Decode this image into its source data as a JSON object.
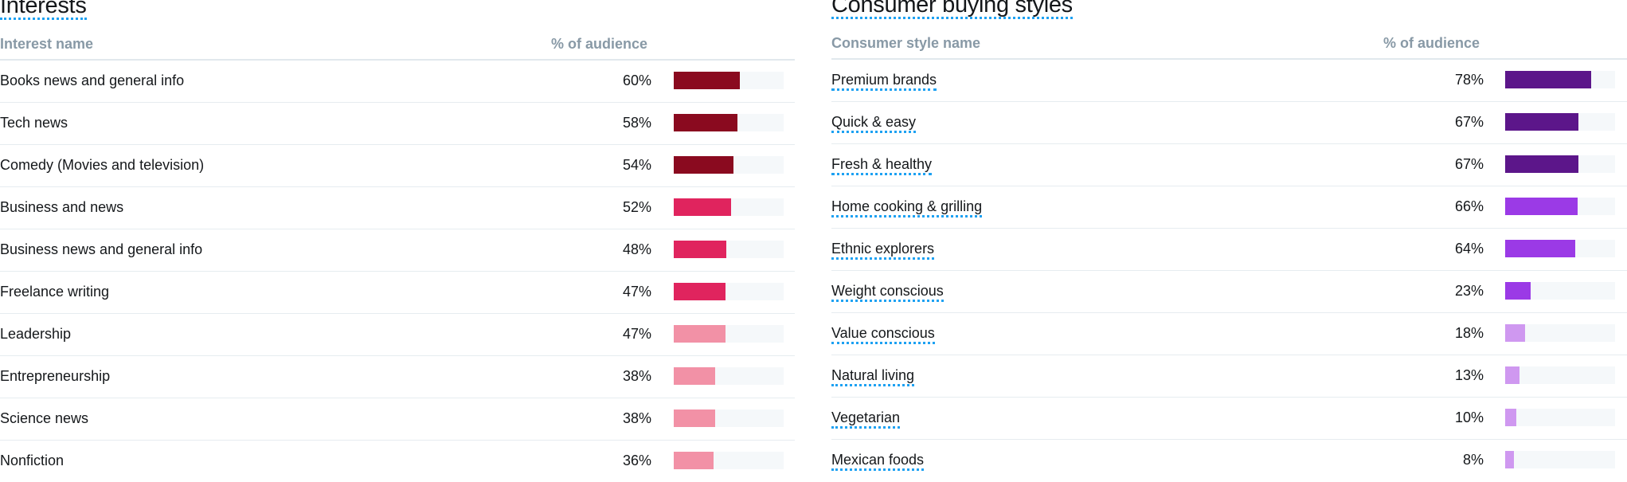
{
  "interests": {
    "title": "Interests",
    "header_name": "Interest name",
    "header_pct": "% of audience",
    "rows": [
      {
        "name": "Books news and general info",
        "pct_label": "60%",
        "value": 60,
        "color": "#8a0a1f"
      },
      {
        "name": "Tech news",
        "pct_label": "58%",
        "value": 58,
        "color": "#8a0a1f"
      },
      {
        "name": "Comedy (Movies and television)",
        "pct_label": "54%",
        "value": 54,
        "color": "#8a0a1f"
      },
      {
        "name": "Business and news",
        "pct_label": "52%",
        "value": 52,
        "color": "#e0245e"
      },
      {
        "name": "Business news and general info",
        "pct_label": "48%",
        "value": 48,
        "color": "#e0245e"
      },
      {
        "name": "Freelance writing",
        "pct_label": "47%",
        "value": 47,
        "color": "#e0245e"
      },
      {
        "name": "Leadership",
        "pct_label": "47%",
        "value": 47,
        "color": "#f291a6"
      },
      {
        "name": "Entrepreneurship",
        "pct_label": "38%",
        "value": 38,
        "color": "#f291a6"
      },
      {
        "name": "Science news",
        "pct_label": "38%",
        "value": 38,
        "color": "#f291a6"
      },
      {
        "name": "Nonfiction",
        "pct_label": "36%",
        "value": 36,
        "color": "#f291a6"
      }
    ]
  },
  "consumer": {
    "title": "Consumer buying styles",
    "header_name": "Consumer style name",
    "header_pct": "% of audience",
    "rows": [
      {
        "name": "Premium brands",
        "pct_label": "78%",
        "value": 78,
        "color": "#5c168a"
      },
      {
        "name": "Quick & easy",
        "pct_label": "67%",
        "value": 67,
        "color": "#5c168a"
      },
      {
        "name": "Fresh & healthy",
        "pct_label": "67%",
        "value": 67,
        "color": "#5c168a"
      },
      {
        "name": "Home cooking & grilling",
        "pct_label": "66%",
        "value": 66,
        "color": "#9b3ae6"
      },
      {
        "name": "Ethnic explorers",
        "pct_label": "64%",
        "value": 64,
        "color": "#9b3ae6"
      },
      {
        "name": "Weight conscious",
        "pct_label": "23%",
        "value": 23,
        "color": "#9b3ae6"
      },
      {
        "name": "Value conscious",
        "pct_label": "18%",
        "value": 18,
        "color": "#cf98f0"
      },
      {
        "name": "Natural living",
        "pct_label": "13%",
        "value": 13,
        "color": "#cf98f0"
      },
      {
        "name": "Vegetarian",
        "pct_label": "10%",
        "value": 10,
        "color": "#cf98f0"
      },
      {
        "name": "Mexican foods",
        "pct_label": "8%",
        "value": 8,
        "color": "#cf98f0"
      }
    ]
  }
}
